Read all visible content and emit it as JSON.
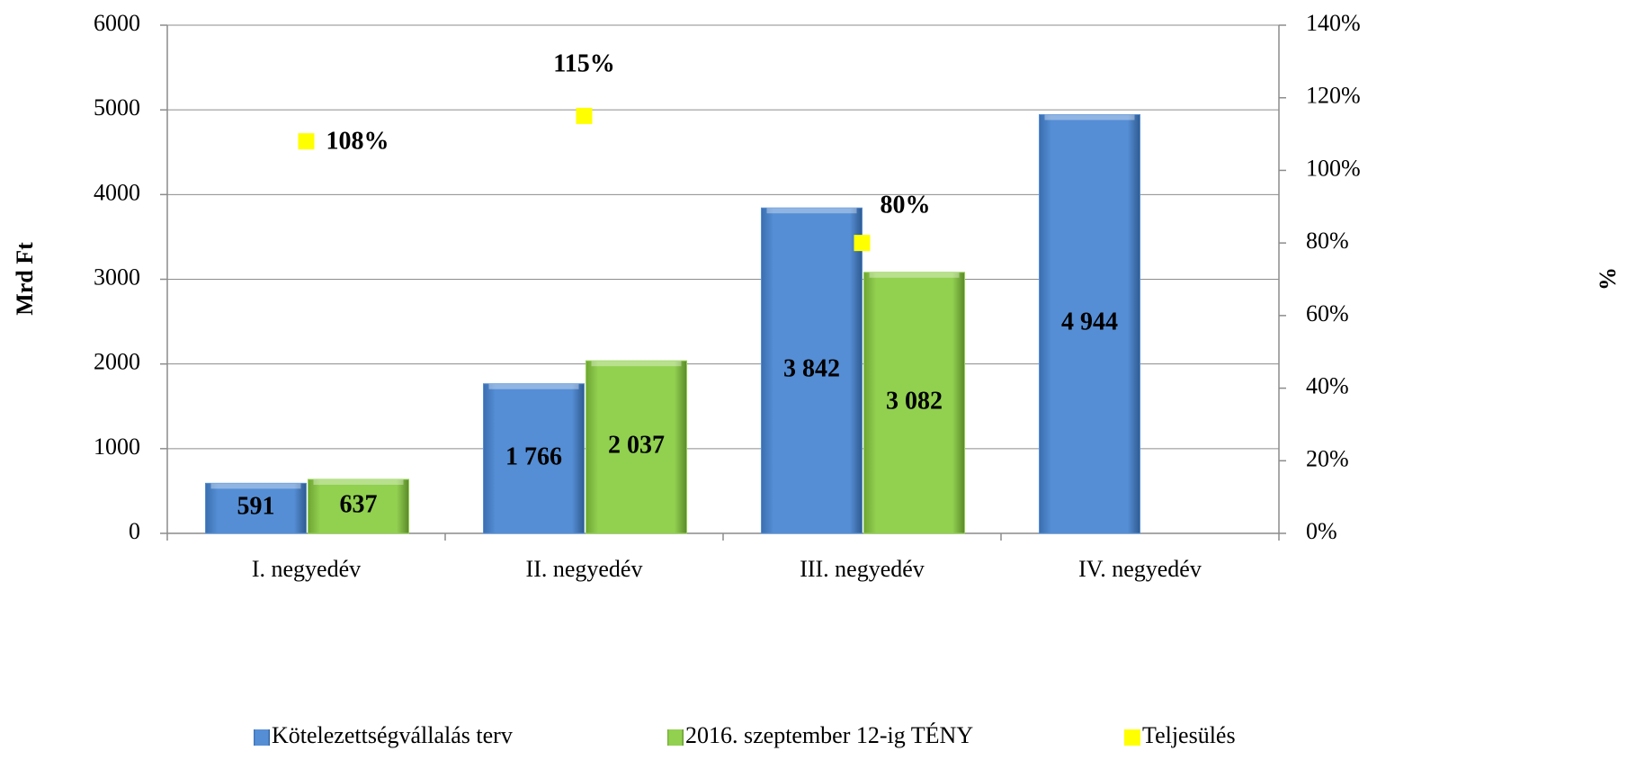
{
  "chart_data": {
    "type": "bar",
    "y_label": "Mrd Ft",
    "y2_label": "%",
    "categories": [
      "I. negyedév",
      "II. negyedév",
      "III. negyedév",
      "IV. negyedév"
    ],
    "series": [
      {
        "name": "Kötelezettségvállalás terv",
        "color": "#558ed5",
        "values": [
          591,
          1766,
          3842,
          4944
        ],
        "value_labels": [
          "591",
          "1 766",
          "3 842",
          "4 944"
        ]
      },
      {
        "name": "2016. szeptember 12-ig TÉNY",
        "color": "#92d050",
        "values": [
          637,
          2037,
          3082,
          null
        ],
        "value_labels": [
          "637",
          "2 037",
          "3 082",
          null
        ]
      },
      {
        "name": "Teljesülés",
        "type": "scatter",
        "axis": "y2",
        "color": "#ffff00",
        "values": [
          108,
          115,
          80,
          null
        ],
        "value_labels": [
          "108%",
          "115%",
          "80%",
          null
        ]
      }
    ],
    "ylim": [
      0,
      6000
    ],
    "yticks": [
      0,
      1000,
      2000,
      3000,
      4000,
      5000,
      6000
    ],
    "y2lim": [
      0,
      140
    ],
    "y2ticks": [
      {
        "value": 0,
        "label": "0%"
      },
      {
        "value": 20,
        "label": "20%"
      },
      {
        "value": 40,
        "label": "40%"
      },
      {
        "value": 60,
        "label": "60%"
      },
      {
        "value": 80,
        "label": "80%"
      },
      {
        "value": 100,
        "label": "100%"
      },
      {
        "value": 120,
        "label": "120%"
      },
      {
        "value": 140,
        "label": "140%"
      }
    ],
    "grid": true,
    "legend": "bottom"
  }
}
